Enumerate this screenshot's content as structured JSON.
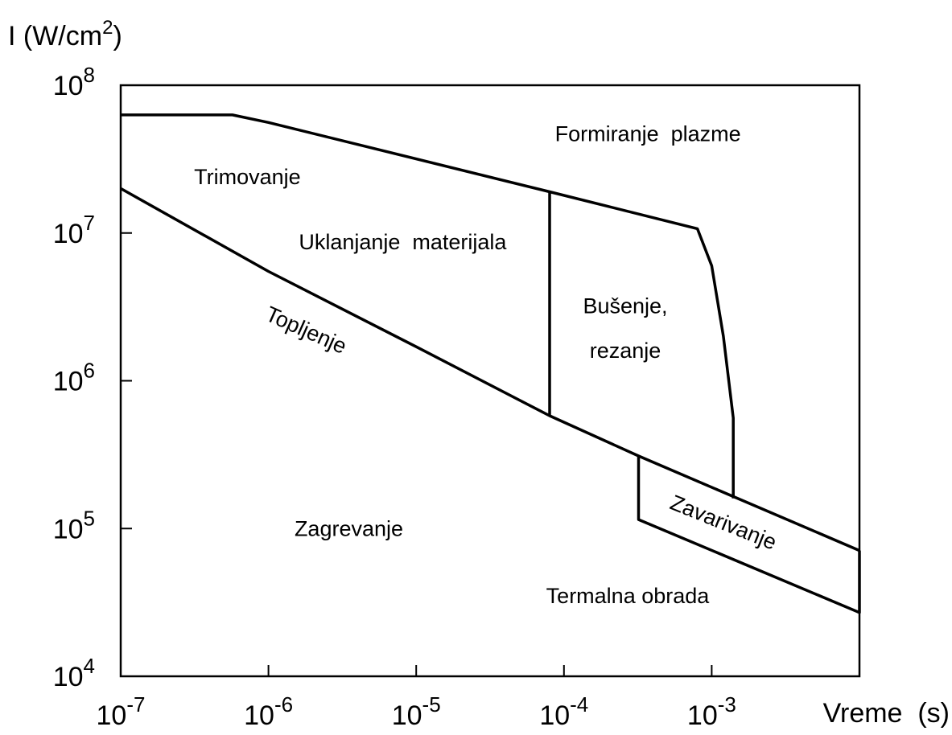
{
  "chart_data": {
    "type": "line",
    "log_x": true,
    "log_y": true,
    "color": "#000000",
    "x_label": "Vreme  (s)",
    "y_label": {
      "text": "I (W/cm",
      "sup": "2",
      "end": ")"
    },
    "xlim": [
      1e-07,
      0.01
    ],
    "ylim": [
      10000.0,
      100000000.0
    ],
    "xticks": [
      {
        "value": 1e-07,
        "label": "10",
        "exponent": "-7"
      },
      {
        "value": 1e-06,
        "label": "10",
        "exponent": "-6"
      },
      {
        "value": 1e-05,
        "label": "10",
        "exponent": "-5"
      },
      {
        "value": 0.0001,
        "label": "10",
        "exponent": "-4"
      },
      {
        "value": 0.001,
        "label": "10",
        "exponent": "-3"
      }
    ],
    "yticks": [
      {
        "value": 10000.0,
        "label": "10",
        "exponent": "4"
      },
      {
        "value": 100000.0,
        "label": "10",
        "exponent": "5"
      },
      {
        "value": 1000000.0,
        "label": "10",
        "exponent": "6"
      },
      {
        "value": 10000000.0,
        "label": "10",
        "exponent": "7"
      },
      {
        "value": 100000000.0,
        "label": "10",
        "exponent": "8"
      }
    ],
    "series": [
      {
        "x": [
          1e-07,
          5.7e-07,
          1e-06,
          8e-05,
          0.0008,
          0.001,
          0.0012,
          0.0014,
          0.0014
        ],
        "values": [
          63000000.0,
          63000000.0,
          56000000.0,
          19000000.0,
          10700000.0,
          6000000.0,
          2000000.0,
          560000.0,
          160000.0
        ]
      },
      {
        "x": [
          1e-07,
          1e-06,
          1e-05,
          8e-05,
          0.00032,
          0.01
        ],
        "values": [
          20000000.0,
          5500000.0,
          1700000.0,
          580000.0,
          310000.0,
          71000.0
        ]
      },
      {
        "x": [
          8e-05,
          8e-05
        ],
        "values": [
          19000000.0,
          580000.0
        ]
      },
      {
        "x": [
          0.00032,
          0.00032,
          0.01,
          0.01
        ],
        "values": [
          310000.0,
          115000.0,
          27000.0,
          71000.0
        ]
      }
    ],
    "annotations": [
      {
        "text": "Formiranje  plazme",
        "x": 0.00037,
        "y": 47000000.0
      },
      {
        "text": "Trimovanje",
        "x": 7.2e-07,
        "y": 24000000.0
      },
      {
        "text": "Uklanjanje  materijala",
        "x": 8.1e-06,
        "y": 8700000.0
      },
      {
        "text": "Bušenje,",
        "x": 0.00026,
        "y": 3200000.0
      },
      {
        "text": "rezanje",
        "x": 0.00026,
        "y": 1600000.0
      },
      {
        "text": "Topljenje",
        "x": 1.8e-06,
        "y": 2200000.0
      },
      {
        "text": "Zagrevanje",
        "x": 3.5e-06,
        "y": 100000.0
      },
      {
        "text": "Zavarivanje",
        "x": 0.0012,
        "y": 110000.0
      },
      {
        "text": "Termalna obrada",
        "x": 0.00027,
        "y": 35000.0
      }
    ]
  }
}
